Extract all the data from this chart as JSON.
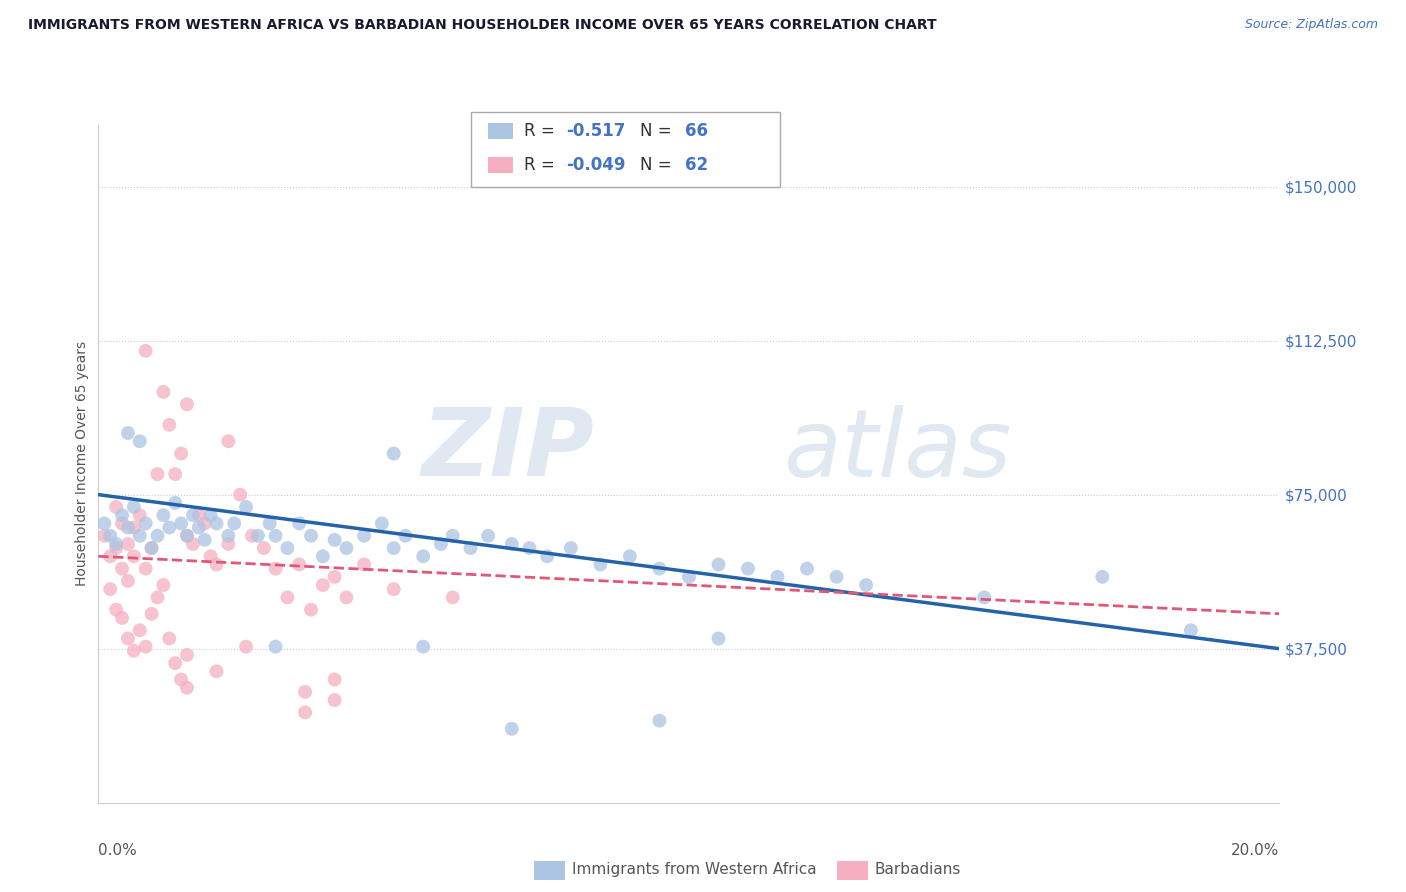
{
  "title": "IMMIGRANTS FROM WESTERN AFRICA VS BARBADIAN HOUSEHOLDER INCOME OVER 65 YEARS CORRELATION CHART",
  "source": "Source: ZipAtlas.com",
  "ylabel": "Householder Income Over 65 years",
  "y_ticks": [
    0,
    37500,
    75000,
    112500,
    150000
  ],
  "y_tick_labels": [
    "",
    "$37,500",
    "$75,000",
    "$112,500",
    "$150,000"
  ],
  "x_range": [
    0,
    0.2
  ],
  "y_range": [
    0,
    165000
  ],
  "series1_label": "Immigrants from Western Africa",
  "series1_R": "-0.517",
  "series1_N": "66",
  "series1_color": "#aac4e2",
  "series1_line_color": "#2563a8",
  "series2_label": "Barbadians",
  "series2_R": "-0.049",
  "series2_N": "62",
  "series2_color": "#f5afc0",
  "series2_line_color": "#e05878",
  "watermark_zip": "ZIP",
  "watermark_atlas": "atlas",
  "blue_line_x": [
    0.0,
    0.2
  ],
  "blue_line_y": [
    75000,
    37500
  ],
  "pink_line_x": [
    0.0,
    0.2
  ],
  "pink_line_y": [
    60000,
    46000
  ],
  "blue_scatter": [
    [
      0.001,
      68000
    ],
    [
      0.002,
      65000
    ],
    [
      0.003,
      63000
    ],
    [
      0.004,
      70000
    ],
    [
      0.005,
      67000
    ],
    [
      0.006,
      72000
    ],
    [
      0.007,
      65000
    ],
    [
      0.008,
      68000
    ],
    [
      0.009,
      62000
    ],
    [
      0.01,
      65000
    ],
    [
      0.011,
      70000
    ],
    [
      0.012,
      67000
    ],
    [
      0.013,
      73000
    ],
    [
      0.014,
      68000
    ],
    [
      0.015,
      65000
    ],
    [
      0.016,
      70000
    ],
    [
      0.017,
      67000
    ],
    [
      0.018,
      64000
    ],
    [
      0.019,
      70000
    ],
    [
      0.02,
      68000
    ],
    [
      0.022,
      65000
    ],
    [
      0.023,
      68000
    ],
    [
      0.025,
      72000
    ],
    [
      0.027,
      65000
    ],
    [
      0.029,
      68000
    ],
    [
      0.03,
      65000
    ],
    [
      0.032,
      62000
    ],
    [
      0.034,
      68000
    ],
    [
      0.036,
      65000
    ],
    [
      0.038,
      60000
    ],
    [
      0.04,
      64000
    ],
    [
      0.042,
      62000
    ],
    [
      0.045,
      65000
    ],
    [
      0.048,
      68000
    ],
    [
      0.05,
      62000
    ],
    [
      0.052,
      65000
    ],
    [
      0.055,
      60000
    ],
    [
      0.058,
      63000
    ],
    [
      0.06,
      65000
    ],
    [
      0.063,
      62000
    ],
    [
      0.066,
      65000
    ],
    [
      0.07,
      63000
    ],
    [
      0.073,
      62000
    ],
    [
      0.076,
      60000
    ],
    [
      0.08,
      62000
    ],
    [
      0.085,
      58000
    ],
    [
      0.09,
      60000
    ],
    [
      0.095,
      57000
    ],
    [
      0.1,
      55000
    ],
    [
      0.105,
      58000
    ],
    [
      0.11,
      57000
    ],
    [
      0.115,
      55000
    ],
    [
      0.12,
      57000
    ],
    [
      0.125,
      55000
    ],
    [
      0.13,
      53000
    ],
    [
      0.005,
      90000
    ],
    [
      0.007,
      88000
    ],
    [
      0.05,
      85000
    ],
    [
      0.07,
      18000
    ],
    [
      0.095,
      20000
    ],
    [
      0.105,
      40000
    ],
    [
      0.15,
      50000
    ],
    [
      0.17,
      55000
    ],
    [
      0.185,
      42000
    ],
    [
      0.03,
      38000
    ],
    [
      0.055,
      38000
    ]
  ],
  "pink_scatter": [
    [
      0.001,
      65000
    ],
    [
      0.002,
      60000
    ],
    [
      0.003,
      72000
    ],
    [
      0.004,
      68000
    ],
    [
      0.005,
      63000
    ],
    [
      0.006,
      67000
    ],
    [
      0.007,
      70000
    ],
    [
      0.008,
      57000
    ],
    [
      0.009,
      62000
    ],
    [
      0.01,
      80000
    ],
    [
      0.011,
      100000
    ],
    [
      0.012,
      92000
    ],
    [
      0.013,
      80000
    ],
    [
      0.014,
      85000
    ],
    [
      0.015,
      65000
    ],
    [
      0.016,
      63000
    ],
    [
      0.017,
      70000
    ],
    [
      0.018,
      68000
    ],
    [
      0.019,
      60000
    ],
    [
      0.02,
      58000
    ],
    [
      0.022,
      63000
    ],
    [
      0.024,
      75000
    ],
    [
      0.026,
      65000
    ],
    [
      0.028,
      62000
    ],
    [
      0.03,
      57000
    ],
    [
      0.032,
      50000
    ],
    [
      0.034,
      58000
    ],
    [
      0.036,
      47000
    ],
    [
      0.038,
      53000
    ],
    [
      0.04,
      55000
    ],
    [
      0.042,
      50000
    ],
    [
      0.045,
      58000
    ],
    [
      0.05,
      52000
    ],
    [
      0.06,
      50000
    ],
    [
      0.002,
      52000
    ],
    [
      0.003,
      47000
    ],
    [
      0.004,
      45000
    ],
    [
      0.005,
      40000
    ],
    [
      0.006,
      37000
    ],
    [
      0.007,
      42000
    ],
    [
      0.008,
      38000
    ],
    [
      0.009,
      46000
    ],
    [
      0.01,
      50000
    ],
    [
      0.011,
      53000
    ],
    [
      0.012,
      40000
    ],
    [
      0.013,
      34000
    ],
    [
      0.014,
      30000
    ],
    [
      0.015,
      36000
    ],
    [
      0.02,
      32000
    ],
    [
      0.025,
      38000
    ],
    [
      0.035,
      27000
    ],
    [
      0.04,
      30000
    ],
    [
      0.008,
      110000
    ],
    [
      0.015,
      97000
    ],
    [
      0.022,
      88000
    ],
    [
      0.003,
      62000
    ],
    [
      0.005,
      54000
    ],
    [
      0.006,
      60000
    ],
    [
      0.004,
      57000
    ],
    [
      0.035,
      22000
    ],
    [
      0.04,
      25000
    ],
    [
      0.015,
      28000
    ]
  ]
}
